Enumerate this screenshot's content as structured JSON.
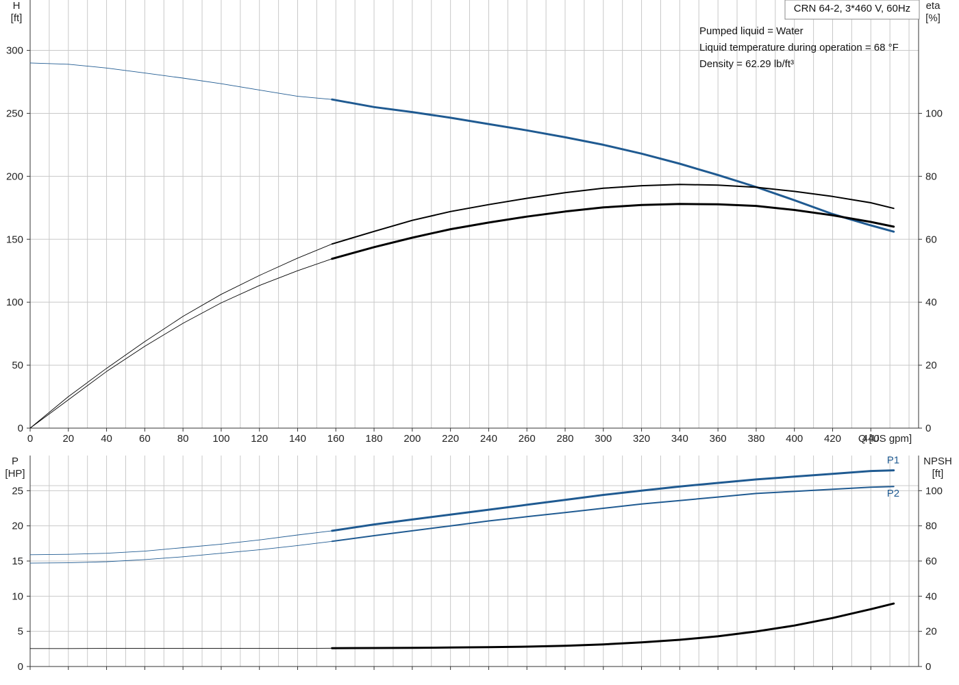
{
  "title": "CRN 64-2, 3*460 V, 60Hz",
  "info_lines": [
    "Pumped liquid = Water",
    "Liquid temperature during operation = 68 °F",
    "Density = 62.29 lb/ft³"
  ],
  "colors": {
    "blue": "#1f5a91",
    "black": "#000000",
    "grid": "#c8c8c8",
    "axis": "#333333"
  },
  "chart_data": [
    {
      "type": "line",
      "title": "CRN 64-2, 3*460 V, 60Hz",
      "xlabel": "Q [US gpm]",
      "y_left_name": "H",
      "y_left_unit": "[ft]",
      "y_right_name": "eta",
      "y_right_unit": "[%]",
      "xlim": [
        0,
        465
      ],
      "ylim_left": [
        0,
        340
      ],
      "ylim_right": [
        0,
        136
      ],
      "x_ticks": [
        0,
        20,
        40,
        60,
        80,
        100,
        120,
        140,
        160,
        180,
        200,
        220,
        240,
        260,
        280,
        300,
        320,
        340,
        360,
        380,
        400,
        420,
        440
      ],
      "y_left_ticks": [
        0,
        50,
        100,
        150,
        200,
        250,
        300
      ],
      "y_right_ticks": [
        0,
        20,
        40,
        60,
        80,
        100
      ],
      "grid": true,
      "series": [
        {
          "axis": "left",
          "color": "blue",
          "operating_range": [
            158,
            452
          ],
          "x": [
            0,
            20,
            40,
            60,
            80,
            100,
            120,
            140,
            158,
            180,
            200,
            220,
            240,
            260,
            280,
            300,
            320,
            340,
            360,
            380,
            400,
            420,
            440,
            452
          ],
          "values": [
            290,
            289,
            286,
            282,
            278,
            273.5,
            268.5,
            263.5,
            261,
            255,
            251,
            246.5,
            241.5,
            236.5,
            231,
            225,
            218,
            210,
            201,
            191.5,
            181,
            170,
            161,
            156
          ]
        },
        {
          "axis": "right",
          "color": "black",
          "operating_range": [
            158,
            452
          ],
          "x": [
            0,
            20,
            40,
            60,
            80,
            100,
            120,
            140,
            158,
            180,
            200,
            220,
            240,
            260,
            280,
            300,
            320,
            340,
            360,
            380,
            400,
            420,
            440,
            452
          ],
          "values": [
            0,
            10,
            19,
            27.5,
            35.5,
            42.5,
            48.5,
            54,
            58.5,
            62.5,
            66,
            68.8,
            71,
            73,
            74.8,
            76.2,
            77,
            77.4,
            77.2,
            76.5,
            75.2,
            73.6,
            71.6,
            69.8
          ]
        },
        {
          "axis": "right",
          "color": "black",
          "operating_range": [
            158,
            452
          ],
          "x": [
            0,
            20,
            40,
            60,
            80,
            100,
            120,
            140,
            158,
            180,
            200,
            220,
            240,
            260,
            280,
            300,
            320,
            340,
            360,
            380,
            400,
            420,
            440,
            452
          ],
          "values": [
            0,
            9,
            18,
            26,
            33.3,
            39.8,
            45.3,
            50,
            53.8,
            57.5,
            60.5,
            63.2,
            65.3,
            67.2,
            68.8,
            70.1,
            70.9,
            71.2,
            71.1,
            70.6,
            69.3,
            67.6,
            65.5,
            64
          ]
        }
      ]
    },
    {
      "type": "line",
      "xlabel": "",
      "y_left_name": "P",
      "y_left_unit": "[HP]",
      "y_right_name": "NPSH",
      "y_right_unit": "[ft]",
      "xlim": [
        0,
        465
      ],
      "ylim_left": [
        0,
        30
      ],
      "ylim_right": [
        0,
        120
      ],
      "x_ticks": [
        0,
        20,
        40,
        60,
        80,
        100,
        120,
        140,
        160,
        180,
        200,
        220,
        240,
        260,
        280,
        300,
        320,
        340,
        360,
        380,
        400,
        420,
        440
      ],
      "y_left_ticks": [
        0,
        5,
        10,
        15,
        20,
        25
      ],
      "y_right_ticks": [
        0,
        20,
        40,
        60,
        80,
        100
      ],
      "grid": true,
      "series": [
        {
          "name": "P1",
          "axis": "left",
          "color": "blue",
          "operating_range": [
            158,
            452
          ],
          "x": [
            0,
            20,
            40,
            60,
            80,
            100,
            120,
            140,
            158,
            180,
            200,
            220,
            240,
            260,
            280,
            300,
            320,
            340,
            360,
            380,
            400,
            420,
            440,
            452
          ],
          "values": [
            15.9,
            15.95,
            16.1,
            16.4,
            16.9,
            17.4,
            18,
            18.7,
            19.3,
            20.2,
            20.9,
            21.6,
            22.3,
            23,
            23.7,
            24.4,
            25,
            25.6,
            26.1,
            26.6,
            27,
            27.4,
            27.8,
            27.9
          ]
        },
        {
          "name": "P2",
          "axis": "left",
          "color": "blue",
          "operating_range": [
            158,
            452
          ],
          "x": [
            0,
            20,
            40,
            60,
            80,
            100,
            120,
            140,
            158,
            180,
            200,
            220,
            240,
            260,
            280,
            300,
            320,
            340,
            360,
            380,
            400,
            420,
            440,
            452
          ],
          "values": [
            14.7,
            14.75,
            14.9,
            15.2,
            15.6,
            16.1,
            16.6,
            17.2,
            17.8,
            18.6,
            19.3,
            20,
            20.7,
            21.3,
            21.9,
            22.5,
            23.1,
            23.6,
            24.1,
            24.6,
            24.9,
            25.2,
            25.5,
            25.6
          ]
        },
        {
          "axis": "right",
          "color": "black",
          "operating_range": [
            158,
            452
          ],
          "x": [
            0,
            20,
            40,
            60,
            80,
            100,
            120,
            140,
            158,
            180,
            200,
            220,
            240,
            260,
            280,
            300,
            320,
            340,
            360,
            380,
            400,
            420,
            440,
            452
          ],
          "values": [
            10.2,
            10.2,
            10.3,
            10.3,
            10.3,
            10.3,
            10.3,
            10.3,
            10.4,
            10.5,
            10.6,
            10.8,
            11,
            11.3,
            11.8,
            12.6,
            13.7,
            15.2,
            17.2,
            19.9,
            23.3,
            27.6,
            32.6,
            35.8
          ]
        }
      ]
    }
  ]
}
